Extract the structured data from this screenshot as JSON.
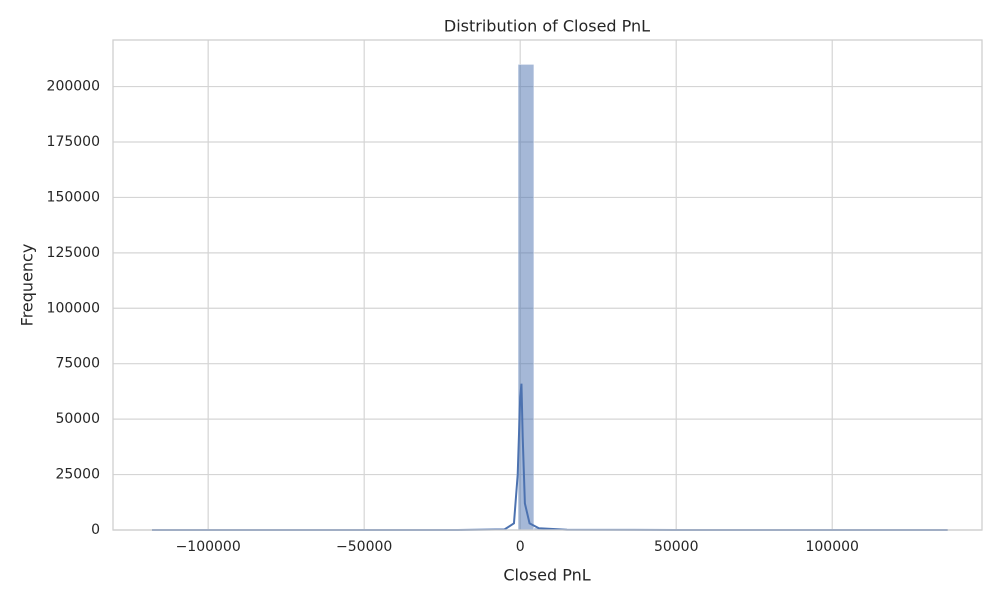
{
  "chart_data": {
    "type": "histogram",
    "title": "Distribution of Closed PnL",
    "x_label": "Closed PnL",
    "y_label": "Frequency",
    "bins": [
      -118000,
      -112900,
      -107800,
      -102700,
      -97600,
      -92500,
      -87400,
      -82300,
      -77200,
      -72100,
      -67000,
      -61900,
      -56800,
      -51700,
      -46600,
      -41500,
      -36400,
      -31300,
      -26200,
      -21100,
      -16000,
      -10900,
      -5800,
      -700,
      4400,
      9500,
      14600,
      19700,
      24800,
      29900,
      35000,
      40100,
      45200,
      50300,
      55400,
      60500,
      65600,
      70700,
      75800,
      80900,
      86000,
      91100,
      96200,
      101300,
      106400,
      111500,
      116600,
      121700,
      126800,
      131900,
      137000
    ],
    "counts": [
      0,
      0,
      0,
      0,
      0,
      0,
      0,
      0,
      0,
      0,
      0,
      0,
      0,
      0,
      0,
      0,
      0,
      0,
      0,
      0,
      0,
      100,
      400,
      210000,
      900,
      200,
      100,
      0,
      0,
      0,
      0,
      0,
      0,
      0,
      0,
      0,
      0,
      0,
      0,
      0,
      0,
      0,
      0,
      0,
      0,
      0,
      0,
      0,
      0,
      0
    ],
    "color": "#4c72b0",
    "kde": {
      "color": "#4c72b0",
      "x": [
        -118000,
        -20000,
        -5000,
        -2000,
        -800,
        0,
        400,
        800,
        1500,
        3000,
        6000,
        15000,
        50000,
        137000
      ],
      "values": [
        0,
        0,
        300,
        3000,
        25000,
        60000,
        66000,
        42000,
        12000,
        3000,
        800,
        100,
        0,
        0
      ]
    },
    "xlim": [
      -130500,
      148000
    ],
    "ylim": [
      0,
      221000
    ],
    "xticks": [
      {
        "value": -100000,
        "label": "−100000"
      },
      {
        "value": -50000,
        "label": "−50000"
      },
      0,
      50000,
      100000
    ],
    "yticks": [
      0,
      25000,
      50000,
      75000,
      100000,
      125000,
      150000,
      175000,
      200000
    ],
    "grid": true
  }
}
